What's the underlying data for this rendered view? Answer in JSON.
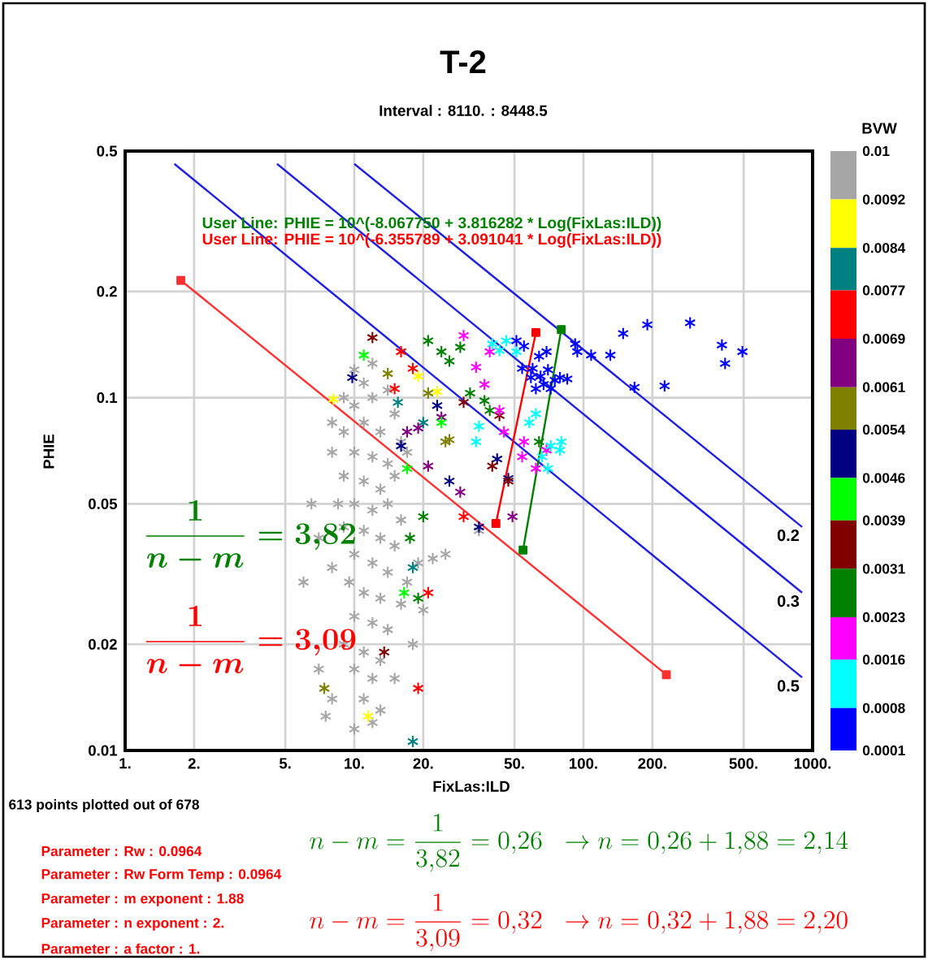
{
  "chart_data": {
    "type": "scatter",
    "title": "T-2",
    "subtitle": "Interval : 8110. : 8448.5",
    "xlabel": "FixLas:ILD",
    "ylabel": "PHIE",
    "clabel": "BVW",
    "log": "xy",
    "grid": true,
    "marker": "cross",
    "xlim": [
      1,
      1000
    ],
    "ylim": [
      0.01,
      0.5
    ],
    "xticks": [
      {
        "value": 1,
        "label": "1."
      },
      {
        "value": 2,
        "label": "2."
      },
      {
        "value": 5,
        "label": "5."
      },
      {
        "value": 10,
        "label": "10."
      },
      {
        "value": 20,
        "label": "20."
      },
      {
        "value": 50,
        "label": "50."
      },
      {
        "value": 100,
        "label": "100."
      },
      {
        "value": 200,
        "label": "200."
      },
      {
        "value": 500,
        "label": "500."
      },
      {
        "value": 1000,
        "label": "1000."
      }
    ],
    "yticks": [
      0.01,
      0.02,
      0.05,
      0.1,
      0.2,
      0.5
    ],
    "clim": [
      0.0001,
      0.01
    ],
    "cticks": [
      0.01,
      0.0092,
      0.0084,
      0.0077,
      0.0069,
      0.0061,
      0.0054,
      0.0046,
      0.0039,
      0.0031,
      0.0023,
      0.0016,
      0.0008,
      0.0001
    ],
    "annotations": [
      "User Line: PHIE = 10^(-8.067750 + 3.816282 * Log(FixLas:ILD))",
      "User Line: PHIE = 10^(-6.355789 + 3.091041 * Log(FixLas:ILD))",
      "\\frac{1}{n-m}=3{,}82",
      "\\frac{1}{n-m}=3{,}09",
      "613 points plotted out of 678",
      "Parameter : Rw   : 0.0964",
      "Parameter : Rw Form Temp : 0.0964",
      "Parameter : m exponent : 1.88",
      "Parameter : n exponent : 2.",
      "Parameter : a factor : 1.",
      "n-m=\\frac{1}{3{,}82}=0{,}26\\;\\;\\rightarrow n=0{,}26+1{,}88=2{,}14",
      "n-m=\\frac{1}{3{,}09}=0{,}32\\;\\;\\rightarrow n=0{,}32+1{,}88=2{,}20"
    ],
    "series": [
      {
        "color": "#a6a6a6",
        "x": [
          10,
          11,
          12,
          9,
          10,
          12,
          14,
          15,
          8,
          9,
          11,
          13,
          16,
          8,
          10,
          12,
          14,
          17,
          9,
          11,
          13,
          15,
          8.5,
          10,
          12,
          14,
          16,
          9,
          11,
          13,
          15,
          10,
          12,
          14,
          17,
          8,
          9.5,
          11,
          13,
          16,
          19,
          22,
          10,
          12,
          14,
          9,
          11,
          13,
          7,
          10,
          12,
          15,
          8,
          11,
          13,
          10,
          12,
          7.5,
          20,
          18,
          6,
          7,
          6.5,
          35,
          25
        ],
        "values": [
          0.12,
          0.11,
          0.125,
          0.1,
          0.095,
          0.1,
          0.105,
          0.09,
          0.085,
          0.08,
          0.085,
          0.08,
          0.075,
          0.07,
          0.07,
          0.068,
          0.065,
          0.07,
          0.06,
          0.058,
          0.055,
          0.06,
          0.05,
          0.05,
          0.048,
          0.05,
          0.045,
          0.043,
          0.042,
          0.04,
          0.038,
          0.036,
          0.034,
          0.032,
          0.03,
          0.033,
          0.03,
          0.028,
          0.027,
          0.026,
          0.034,
          0.035,
          0.024,
          0.023,
          0.022,
          0.02,
          0.019,
          0.018,
          0.017,
          0.017,
          0.016,
          0.016,
          0.014,
          0.014,
          0.013,
          0.0115,
          0.012,
          0.0125,
          0.025,
          0.02,
          0.03,
          0.04,
          0.05,
          0.042,
          0.036
        ]
      },
      {
        "color": "#ffff00",
        "x": [
          11.5,
          8.1,
          19,
          23
        ],
        "values": [
          0.0125,
          0.099,
          0.115,
          0.104
        ]
      },
      {
        "color": "#008080",
        "x": [
          18,
          18,
          15.5,
          20
        ],
        "values": [
          0.033,
          0.0106,
          0.097,
          0.085
        ]
      },
      {
        "color": "#ff0000",
        "x": [
          16,
          18,
          15,
          30,
          21,
          19
        ],
        "values": [
          0.135,
          0.121,
          0.106,
          0.046,
          0.028,
          0.015
        ]
      },
      {
        "color": "#800080",
        "x": [
          17,
          21,
          29,
          49,
          19,
          24
        ],
        "values": [
          0.08,
          0.064,
          0.054,
          0.046,
          0.082,
          0.088
        ]
      },
      {
        "color": "#808000",
        "x": [
          14,
          25,
          7.4,
          21,
          26
        ],
        "values": [
          0.117,
          0.075,
          0.015,
          0.103,
          0.076
        ]
      },
      {
        "color": "#000080",
        "x": [
          16,
          26,
          35,
          42,
          47,
          23,
          9.8
        ],
        "values": [
          0.073,
          0.058,
          0.043,
          0.067,
          0.059,
          0.095,
          0.114
        ]
      },
      {
        "color": "#00ff00",
        "x": [
          11,
          17,
          16.5,
          24
        ],
        "values": [
          0.132,
          0.063,
          0.028,
          0.085
        ]
      },
      {
        "color": "#800000",
        "x": [
          12,
          40,
          47,
          13.5,
          30,
          43
        ],
        "values": [
          0.148,
          0.064,
          0.058,
          0.019,
          0.097,
          0.089
        ]
      },
      {
        "color": "#008000",
        "x": [
          21,
          24,
          29,
          26,
          32,
          37,
          39,
          20,
          17.5,
          19,
          64
        ],
        "values": [
          0.145,
          0.135,
          0.139,
          0.127,
          0.103,
          0.098,
          0.092,
          0.046,
          0.04,
          0.027,
          0.075
        ]
      },
      {
        "color": "#ff00ff",
        "x": [
          30,
          39,
          34,
          37,
          43,
          54,
          69,
          62,
          45,
          55
        ],
        "values": [
          0.15,
          0.135,
          0.122,
          0.109,
          0.092,
          0.068,
          0.071,
          0.063,
          0.08,
          0.075
        ]
      },
      {
        "color": "#00ffff",
        "x": [
          46,
          40,
          51,
          43,
          35,
          34,
          72,
          79,
          70,
          62,
          58,
          80,
          66
        ],
        "values": [
          0.145,
          0.142,
          0.135,
          0.136,
          0.083,
          0.075,
          0.073,
          0.071,
          0.063,
          0.09,
          0.085,
          0.075,
          0.068
        ]
      },
      {
        "color": "#0000ff",
        "x": [
          149,
          190,
          292,
          402,
          415,
          494,
          167,
          226,
          131,
          108,
          92,
          94,
          51,
          55,
          64,
          69,
          60,
          65,
          70,
          75,
          67,
          62,
          72,
          79,
          85,
          59,
          54
        ],
        "values": [
          0.152,
          0.161,
          0.163,
          0.141,
          0.125,
          0.135,
          0.107,
          0.108,
          0.132,
          0.132,
          0.142,
          0.135,
          0.145,
          0.14,
          0.131,
          0.135,
          0.121,
          0.115,
          0.12,
          0.112,
          0.109,
          0.106,
          0.106,
          0.114,
          0.113,
          0.114,
          0.121
        ]
      },
      {
        "type": "line",
        "marker": "none",
        "name": "0.2",
        "color": "#2020e0",
        "x": [
          10,
          900
        ],
        "values": [
          0.46,
          0.043
        ]
      },
      {
        "type": "line",
        "marker": "none",
        "name": "0.3",
        "color": "#2020e0",
        "x": [
          4.6,
          900
        ],
        "values": [
          0.46,
          0.028
        ]
      },
      {
        "type": "line",
        "marker": "none",
        "name": "0.5",
        "color": "#2020e0",
        "x": [
          1.64,
          900
        ],
        "values": [
          0.46,
          0.0161
        ]
      },
      {
        "type": "line",
        "marker": "square",
        "color": "#ff3030",
        "x": [
          1.75,
          230
        ],
        "values": [
          0.215,
          0.0164
        ]
      },
      {
        "type": "line",
        "marker": "square",
        "color": "#ff0000",
        "x": [
          41.5,
          62
        ],
        "values": [
          0.044,
          0.153
        ]
      },
      {
        "type": "line",
        "marker": "square",
        "color": "#008000",
        "x": [
          54.5,
          80
        ],
        "values": [
          0.037,
          0.156
        ]
      }
    ]
  }
}
